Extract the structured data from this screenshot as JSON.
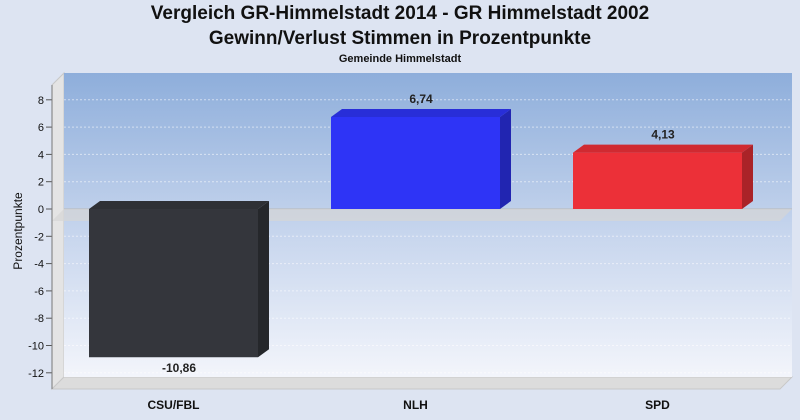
{
  "chart_data": {
    "type": "bar",
    "title": "Vergleich GR-Himmelstadt 2014 - GR Himmelstadt 2002",
    "subtitle": "Gewinn/Verlust Stimmen in Prozentpunkte",
    "subtitle2": "Gemeinde Himmelstadt",
    "ylabel": "Prozentpunkte",
    "xlabel": "",
    "ylim": [
      -13,
      9
    ],
    "yticks": [
      8,
      6,
      4,
      2,
      0,
      -2,
      -4,
      -6,
      -8,
      -10,
      -12
    ],
    "grid": true,
    "categories": [
      "CSU/FBL",
      "NLH",
      "SPD"
    ],
    "values": [
      -10.86,
      6.74,
      4.13
    ],
    "value_labels": [
      "-10,86",
      "6,74",
      "4,13"
    ],
    "colors": [
      "#34363c",
      "#2e34f6",
      "#ec3038"
    ]
  }
}
